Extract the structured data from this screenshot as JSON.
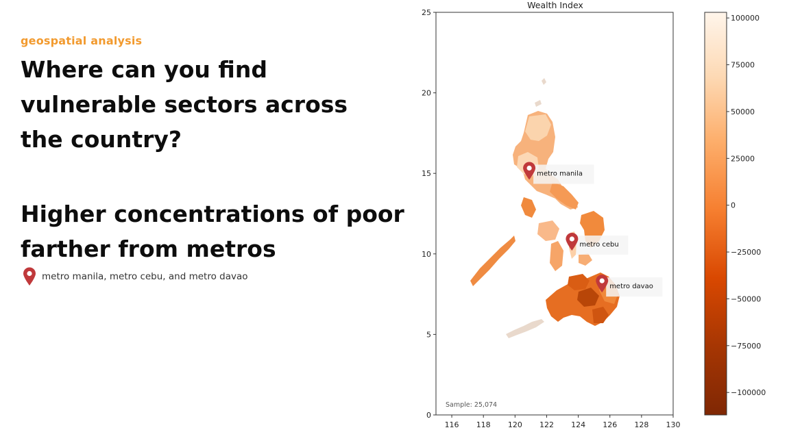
{
  "header": {
    "eyebrow": "geospatial analysis",
    "question_lines": [
      "Where can you find",
      "vulnerable sectors across",
      "the country?"
    ],
    "finding_lines": [
      "Higher concentrations of poor",
      "farther from metros"
    ],
    "legend_text": "metro manila, metro cebu, and metro davao"
  },
  "map": {
    "title": "Wealth Index",
    "sample_text": "Sample: 25,074",
    "x_ticks": [
      "116",
      "118",
      "120",
      "122",
      "124",
      "126",
      "128",
      "130"
    ],
    "y_ticks": [
      "0",
      "5",
      "10",
      "15",
      "20",
      "25"
    ],
    "xlim": [
      115,
      130
    ],
    "ylim": [
      0,
      25
    ],
    "markers": [
      {
        "label": "metro manila",
        "lon": 120.9,
        "lat": 15.2
      },
      {
        "label": "metro cebu",
        "lon": 123.6,
        "lat": 10.8
      },
      {
        "label": "metro davao",
        "lon": 125.5,
        "lat": 8.2
      }
    ],
    "colorbar": {
      "ticks": [
        "100000",
        "75000",
        "50000",
        "25000",
        "0",
        "−25000",
        "−50000",
        "−75000",
        "−100000"
      ],
      "min": -112000,
      "max": 103000,
      "colors": [
        "#fff5eb",
        "#fdd9b4",
        "#fdae6b",
        "#f67f30",
        "#d94801",
        "#a63603",
        "#7f2704"
      ]
    },
    "marker_color": "#c0393b"
  }
}
